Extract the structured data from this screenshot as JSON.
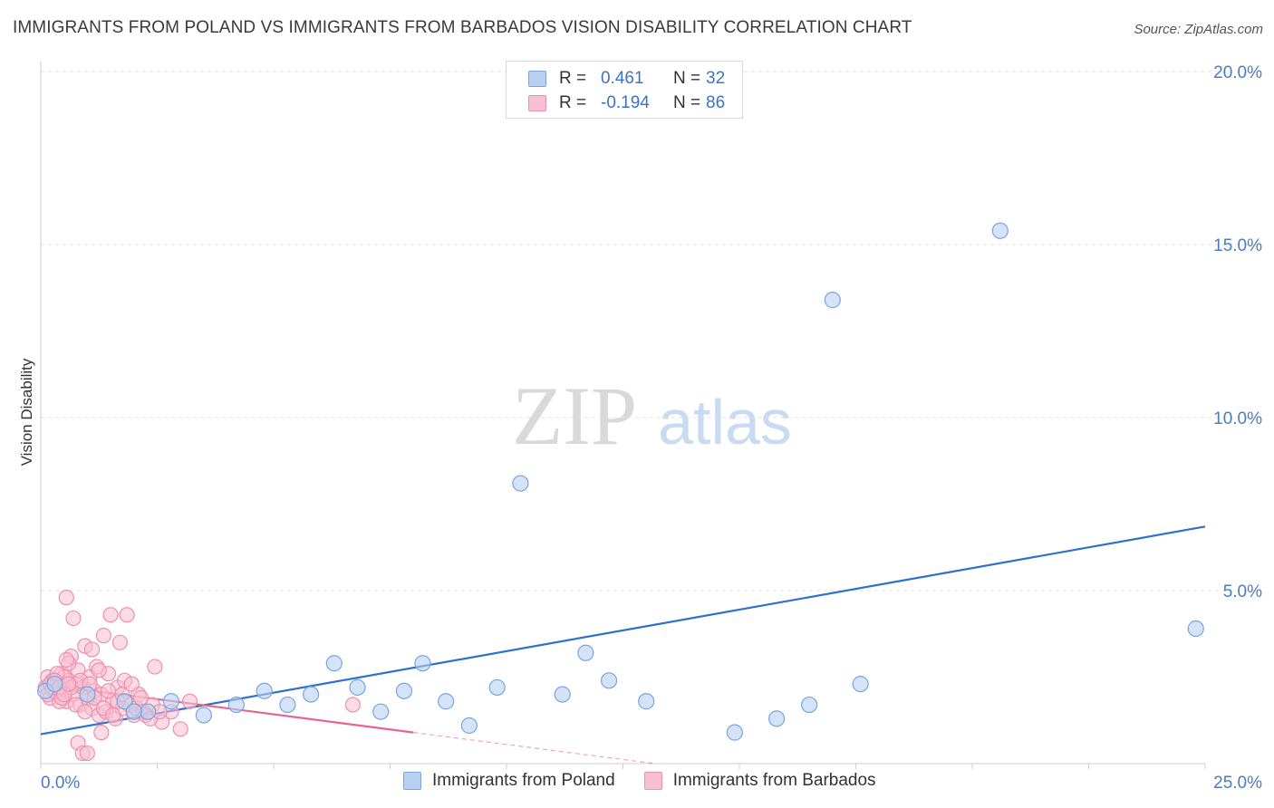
{
  "title": "IMMIGRANTS FROM POLAND VS IMMIGRANTS FROM BARBADOS VISION DISABILITY CORRELATION CHART",
  "source": "Source: ZipAtlas.com",
  "watermark": {
    "zip": "ZIP",
    "atlas": "atlas"
  },
  "colors": {
    "poland_fill": "#b8d0f2",
    "poland_stroke": "#7aa5de",
    "poland_line": "#2f6fce",
    "barbados_fill": "#f8c0d2",
    "barbados_stroke": "#ee8fad",
    "barbados_line": "#e8648f",
    "grid": "#e0e0e0",
    "axis_text": "#4a7cc0"
  },
  "legend": {
    "rows": [
      {
        "r_label": "R =",
        "r_value": "0.461",
        "n_label": "N =",
        "n_value": "32",
        "series": "poland"
      },
      {
        "r_label": "R =",
        "r_value": "-0.194",
        "n_label": "N =",
        "n_value": "86",
        "series": "barbados"
      }
    ]
  },
  "bottom_legend": [
    "Immigrants from Poland",
    "Immigrants from Barbados"
  ],
  "chart_data": {
    "type": "scatter",
    "title": "IMMIGRANTS FROM POLAND VS IMMIGRANTS FROM BARBADOS VISION DISABILITY CORRELATION CHART",
    "xlabel": "",
    "ylabel": "Vision Disability",
    "xlim": [
      0,
      25
    ],
    "ylim": [
      0,
      20
    ],
    "x_tick_labels": [
      "0.0%",
      "25.0%"
    ],
    "y_ticks": [
      5,
      10,
      15,
      20
    ],
    "y_tick_labels": [
      "5.0%",
      "10.0%",
      "15.0%",
      "20.0%"
    ],
    "grid": true,
    "series": [
      {
        "name": "Immigrants from Poland",
        "points": [
          [
            0.1,
            2.1
          ],
          [
            1.0,
            2.0
          ],
          [
            1.8,
            1.8
          ],
          [
            2.3,
            1.5
          ],
          [
            2.8,
            1.8
          ],
          [
            3.5,
            1.4
          ],
          [
            4.2,
            1.7
          ],
          [
            4.8,
            2.1
          ],
          [
            5.3,
            1.7
          ],
          [
            5.8,
            2.0
          ],
          [
            6.3,
            2.9
          ],
          [
            6.8,
            2.2
          ],
          [
            7.3,
            1.5
          ],
          [
            7.8,
            2.1
          ],
          [
            8.2,
            2.9
          ],
          [
            8.7,
            1.8
          ],
          [
            9.2,
            1.1
          ],
          [
            9.8,
            2.2
          ],
          [
            10.3,
            8.1
          ],
          [
            11.2,
            2.0
          ],
          [
            11.7,
            3.2
          ],
          [
            12.2,
            2.4
          ],
          [
            13.0,
            1.8
          ],
          [
            14.9,
            0.9
          ],
          [
            15.8,
            1.3
          ],
          [
            16.5,
            1.7
          ],
          [
            17.0,
            13.4
          ],
          [
            17.6,
            2.3
          ],
          [
            20.6,
            15.4
          ],
          [
            24.8,
            3.9
          ],
          [
            0.3,
            2.3
          ],
          [
            2.0,
            1.5
          ]
        ],
        "trend": {
          "x": [
            0,
            25
          ],
          "y": [
            0.85,
            6.85
          ]
        }
      },
      {
        "name": "Immigrants from Barbados",
        "points": [
          [
            0.1,
            2.2
          ],
          [
            0.15,
            2.5
          ],
          [
            0.2,
            1.9
          ],
          [
            0.25,
            2.4
          ],
          [
            0.3,
            2.3
          ],
          [
            0.35,
            2.0
          ],
          [
            0.4,
            2.1
          ],
          [
            0.45,
            2.6
          ],
          [
            0.5,
            2.2
          ],
          [
            0.55,
            1.8
          ],
          [
            0.6,
            2.4
          ],
          [
            0.65,
            3.1
          ],
          [
            0.7,
            2.0
          ],
          [
            0.75,
            2.3
          ],
          [
            0.8,
            2.7
          ],
          [
            0.85,
            1.7
          ],
          [
            0.9,
            2.2
          ],
          [
            0.95,
            3.4
          ],
          [
            1.0,
            1.9
          ],
          [
            1.05,
            2.5
          ],
          [
            1.1,
            1.6
          ],
          [
            1.15,
            2.1
          ],
          [
            1.2,
            2.8
          ],
          [
            1.25,
            1.4
          ],
          [
            1.3,
            2.0
          ],
          [
            1.35,
            3.7
          ],
          [
            1.4,
            1.5
          ],
          [
            1.45,
            2.6
          ],
          [
            1.5,
            4.3
          ],
          [
            1.55,
            1.8
          ],
          [
            1.6,
            1.3
          ],
          [
            1.65,
            2.2
          ],
          [
            1.7,
            3.5
          ],
          [
            1.75,
            1.6
          ],
          [
            1.8,
            2.4
          ],
          [
            1.85,
            4.3
          ],
          [
            1.9,
            1.7
          ],
          [
            2.0,
            1.4
          ],
          [
            2.1,
            2.0
          ],
          [
            2.2,
            1.5
          ],
          [
            2.4,
            1.7
          ],
          [
            2.6,
            1.2
          ],
          [
            2.8,
            1.5
          ],
          [
            3.0,
            1.0
          ],
          [
            3.2,
            1.8
          ],
          [
            0.55,
            4.8
          ],
          [
            0.7,
            4.2
          ],
          [
            1.1,
            3.3
          ],
          [
            0.6,
            2.9
          ],
          [
            0.8,
            0.6
          ],
          [
            0.9,
            0.3
          ],
          [
            1.0,
            0.3
          ],
          [
            0.3,
            2.1
          ],
          [
            0.4,
            1.8
          ],
          [
            0.5,
            2.5
          ],
          [
            0.2,
            2.3
          ],
          [
            0.35,
            2.6
          ],
          [
            0.45,
            1.9
          ],
          [
            0.65,
            2.2
          ],
          [
            0.75,
            1.7
          ],
          [
            0.85,
            2.4
          ],
          [
            0.95,
            1.5
          ],
          [
            1.05,
            2.3
          ],
          [
            1.15,
            1.9
          ],
          [
            1.25,
            2.7
          ],
          [
            1.35,
            1.6
          ],
          [
            1.45,
            2.1
          ],
          [
            1.55,
            1.4
          ],
          [
            1.65,
            1.8
          ],
          [
            1.75,
            2.0
          ],
          [
            1.95,
            2.3
          ],
          [
            2.05,
            1.6
          ],
          [
            2.15,
            1.9
          ],
          [
            2.25,
            1.4
          ],
          [
            2.35,
            1.3
          ],
          [
            2.45,
            2.8
          ],
          [
            2.55,
            1.5
          ],
          [
            0.15,
            2.0
          ],
          [
            0.25,
            2.2
          ],
          [
            0.55,
            3.0
          ],
          [
            0.3,
            2.4
          ],
          [
            0.4,
            2.2
          ],
          [
            0.5,
            2.0
          ],
          [
            0.6,
            2.3
          ],
          [
            6.7,
            1.7
          ],
          [
            1.3,
            0.9
          ]
        ],
        "trend": {
          "x": [
            0,
            8
          ],
          "y": [
            2.3,
            0.9
          ]
        },
        "trend_dashed": {
          "x": [
            8,
            25
          ],
          "y": [
            0.9,
            -2.05
          ]
        }
      }
    ]
  }
}
